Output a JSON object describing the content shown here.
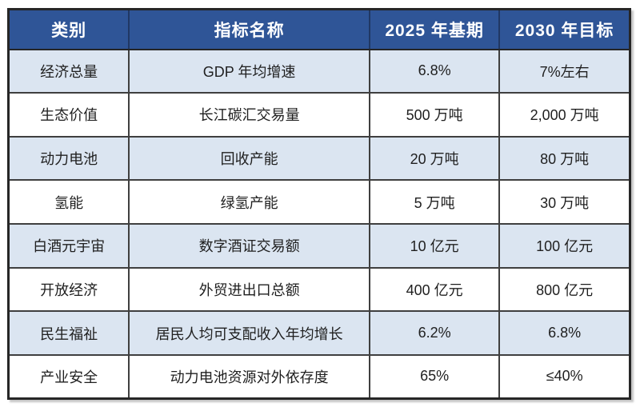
{
  "colors": {
    "header_bg": "#2F5597",
    "header_text": "#FFFFFF",
    "header_border": "#203864",
    "row_alt_bg": "#DBE5F1",
    "row_bg": "#FFFFFF",
    "border": "#3F3F3F",
    "outer_border": "#262626",
    "body_text": "#1F1F1F"
  },
  "chart_data": {
    "type": "table",
    "columns": [
      "类别",
      "指标名称",
      "2025 年基期",
      "2030 年目标"
    ],
    "rows": [
      [
        "经济总量",
        "GDP 年均增速",
        "6.8%",
        "7%左右"
      ],
      [
        "生态价值",
        "长江碳汇交易量",
        "500 万吨",
        "2,000 万吨"
      ],
      [
        "动力电池",
        "回收产能",
        "20 万吨",
        "80 万吨"
      ],
      [
        "氢能",
        "绿氢产能",
        "5 万吨",
        "30 万吨"
      ],
      [
        "白酒元宇宙",
        "数字酒证交易额",
        "10 亿元",
        "100 亿元"
      ],
      [
        "开放经济",
        "外贸进出口总额",
        "400 亿元",
        "800 亿元"
      ],
      [
        "民生福祉",
        "居民人均可支配收入年均增长",
        "6.2%",
        "6.8%"
      ],
      [
        "产业安全",
        "动力电池资源对外依存度",
        "65%",
        "≤40%"
      ]
    ],
    "layout": {
      "grid": true,
      "banding": "odd-rows-light-blue",
      "alignment": "center"
    }
  }
}
